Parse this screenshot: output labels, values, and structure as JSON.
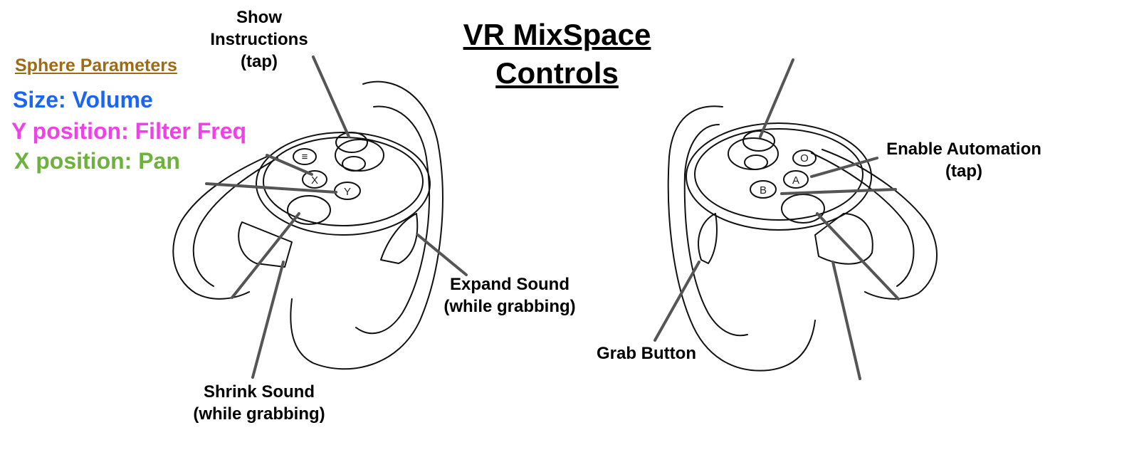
{
  "title_line1": "VR MixSpace",
  "title_line2": "Controls",
  "legend": {
    "title": "Sphere Parameters",
    "items": [
      {
        "text": "Size: Volume",
        "color": "#1a66f0"
      },
      {
        "text": "Y position: Filter Freq",
        "color": "#f040e8"
      },
      {
        "text": "X position: Pan",
        "color": "#6db23d"
      }
    ]
  },
  "labels": {
    "show_instructions": [
      "Show",
      "Instructions",
      "(tap)"
    ],
    "enable_automation": [
      "Enable Automation",
      "(tap)"
    ],
    "expand_sound": [
      "Expand Sound",
      "(while grabbing)"
    ],
    "shrink_sound": [
      "Shrink Sound",
      "(while grabbing)"
    ],
    "grab_button": "Grab Button"
  },
  "left_buttons": {
    "menu": "≡",
    "x": "X",
    "y": "Y"
  },
  "right_buttons": {
    "oculus": "O",
    "a": "A",
    "b": "B"
  },
  "colors": {
    "outline": "#111111",
    "leader": "#555555"
  }
}
